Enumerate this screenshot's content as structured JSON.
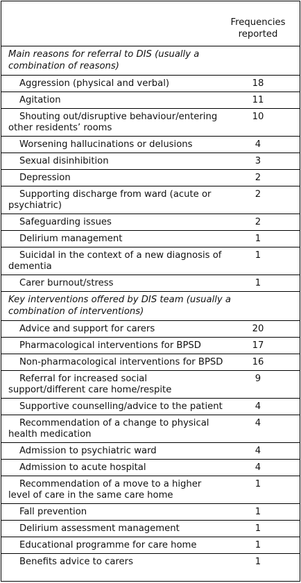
{
  "table": {
    "column_header": "Frequencies reported",
    "sections": [
      {
        "title": "Main reasons for referral to DIS (usually a combination of reasons)",
        "rows": [
          {
            "label": "Aggression (physical and verbal)",
            "value": "18"
          },
          {
            "label": "Agitation",
            "value": "11"
          },
          {
            "label": "Shouting out/disruptive behaviour/entering other residents’ rooms",
            "value": "10"
          },
          {
            "label": "Worsening hallucinations or delusions",
            "value": "4"
          },
          {
            "label": "Sexual disinhibition",
            "value": "3"
          },
          {
            "label": "Depression",
            "value": "2"
          },
          {
            "label": "Supporting discharge from ward (acute or psychiatric)",
            "value": "2"
          },
          {
            "label": "Safeguarding issues",
            "value": "2"
          },
          {
            "label": "Delirium management",
            "value": "1"
          },
          {
            "label": "Suicidal in the context of a new diagnosis of dementia",
            "value": "1"
          },
          {
            "label": "Carer burnout/stress",
            "value": "1"
          }
        ]
      },
      {
        "title": "Key interventions offered by DIS team (usually a combination of interventions)",
        "rows": [
          {
            "label": "Advice and support for carers",
            "value": "20"
          },
          {
            "label": "Pharmacological interventions for BPSD",
            "value": "17"
          },
          {
            "label": "Non-pharmacological interventions for BPSD",
            "value": "16"
          },
          {
            "label": "Referral for increased social support/different care home/respite",
            "value": "9"
          },
          {
            "label": "Supportive counselling/advice to the patient",
            "value": "4"
          },
          {
            "label": "Recommendation of a change to physical health medication",
            "value": "4"
          },
          {
            "label": "Admission to psychiatric ward",
            "value": "4"
          },
          {
            "label": "Admission to acute hospital",
            "value": "4"
          },
          {
            "label": "Recommendation of a move to a higher level of care in the same care home",
            "value": "1"
          },
          {
            "label": "Fall prevention",
            "value": "1"
          },
          {
            "label": "Delirium assessment management",
            "value": "1"
          },
          {
            "label": "Educational programme for care home",
            "value": "1"
          },
          {
            "label": "Benefits advice to carers",
            "value": "1"
          }
        ]
      }
    ]
  }
}
